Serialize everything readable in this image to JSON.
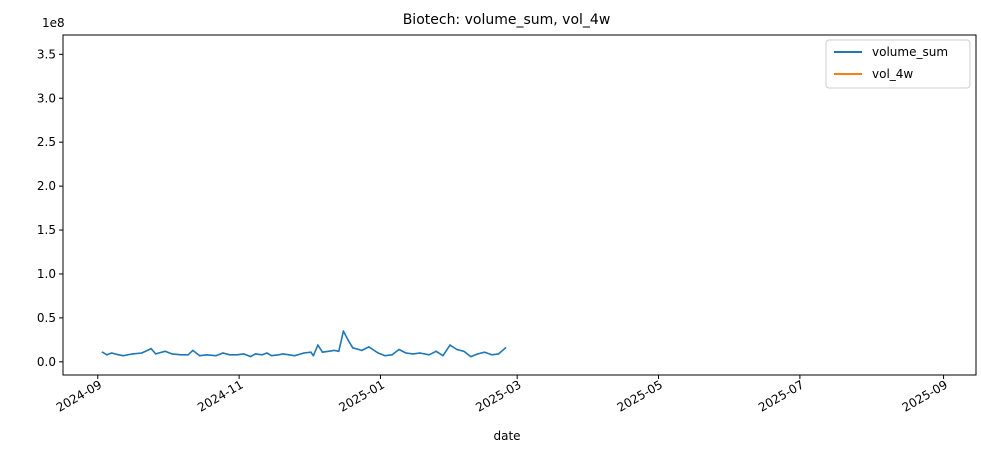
{
  "chart_data": {
    "type": "line",
    "title": "Biotech: volume_sum, vol_4w",
    "xlabel": "date",
    "ylabel": "",
    "y_offset_label": "1e8",
    "ylim": [
      -0.15,
      3.72
    ],
    "y_unit": 100000000,
    "yticks": [
      0.0,
      0.5,
      1.0,
      1.5,
      2.0,
      2.5,
      3.0,
      3.5
    ],
    "ytick_labels": [
      "0.0",
      "0.5",
      "1.0",
      "1.5",
      "2.0",
      "2.5",
      "3.0",
      "3.5"
    ],
    "xlim": [
      "2024-08-17",
      "2025-09-15"
    ],
    "xticks": [
      "2024-09-01",
      "2024-11-01",
      "2025-01-01",
      "2025-03-01",
      "2025-05-01",
      "2025-07-01",
      "2025-09-01"
    ],
    "xtick_labels": [
      "2024-09",
      "2024-11",
      "2025-01",
      "2025-03",
      "2025-05",
      "2025-07",
      "2025-09"
    ],
    "grid": false,
    "legend": "top-right",
    "series": [
      {
        "name": "volume_sum",
        "color": "#1f77b4",
        "points": [
          [
            "2024-09-03",
            0.11
          ],
          [
            "2024-09-05",
            0.08
          ],
          [
            "2024-09-07",
            0.1
          ],
          [
            "2024-09-10",
            0.08
          ],
          [
            "2024-09-12",
            0.07
          ],
          [
            "2024-09-16",
            0.09
          ],
          [
            "2024-09-20",
            0.1
          ],
          [
            "2024-09-24",
            0.15
          ],
          [
            "2024-09-26",
            0.09
          ],
          [
            "2024-09-30",
            0.12
          ],
          [
            "2024-10-03",
            0.09
          ],
          [
            "2024-10-07",
            0.08
          ],
          [
            "2024-10-10",
            0.08
          ],
          [
            "2024-10-12",
            0.13
          ],
          [
            "2024-10-15",
            0.07
          ],
          [
            "2024-10-18",
            0.08
          ],
          [
            "2024-10-22",
            0.07
          ],
          [
            "2024-10-25",
            0.1
          ],
          [
            "2024-10-28",
            0.08
          ],
          [
            "2024-10-31",
            0.08
          ],
          [
            "2024-11-03",
            0.09
          ],
          [
            "2024-11-06",
            0.06
          ],
          [
            "2024-11-08",
            0.09
          ],
          [
            "2024-11-11",
            0.08
          ],
          [
            "2024-11-13",
            0.1
          ],
          [
            "2024-11-15",
            0.07
          ],
          [
            "2024-11-18",
            0.08
          ],
          [
            "2024-11-20",
            0.09
          ],
          [
            "2024-11-25",
            0.07
          ],
          [
            "2024-11-29",
            0.1
          ],
          [
            "2024-12-02",
            0.11
          ],
          [
            "2024-12-03",
            0.07
          ],
          [
            "2024-12-05",
            0.19
          ],
          [
            "2024-12-07",
            0.11
          ],
          [
            "2024-12-12",
            0.13
          ],
          [
            "2024-12-14",
            0.12
          ],
          [
            "2024-12-16",
            0.35
          ],
          [
            "2024-12-18",
            0.25
          ],
          [
            "2024-12-20",
            0.16
          ],
          [
            "2024-12-24",
            0.13
          ],
          [
            "2024-12-27",
            0.17
          ],
          [
            "2024-12-31",
            0.1
          ],
          [
            "2025-01-03",
            0.07
          ],
          [
            "2025-01-06",
            0.08
          ],
          [
            "2025-01-09",
            0.14
          ],
          [
            "2025-01-12",
            0.1
          ],
          [
            "2025-01-15",
            0.09
          ],
          [
            "2025-01-18",
            0.1
          ],
          [
            "2025-01-22",
            0.08
          ],
          [
            "2025-01-25",
            0.12
          ],
          [
            "2025-01-28",
            0.07
          ],
          [
            "2025-01-31",
            0.19
          ],
          [
            "2025-02-03",
            0.14
          ],
          [
            "2025-02-06",
            0.12
          ],
          [
            "2025-02-09",
            0.06
          ],
          [
            "2025-02-12",
            0.09
          ],
          [
            "2025-02-15",
            0.11
          ],
          [
            "2025-02-18",
            0.08
          ],
          [
            "2025-02-21",
            0.09
          ],
          [
            "2025-02-24",
            0.16
          ]
        ]
      },
      {
        "name": "vol_4w",
        "color": "#ff7f0e",
        "points": []
      }
    ]
  }
}
